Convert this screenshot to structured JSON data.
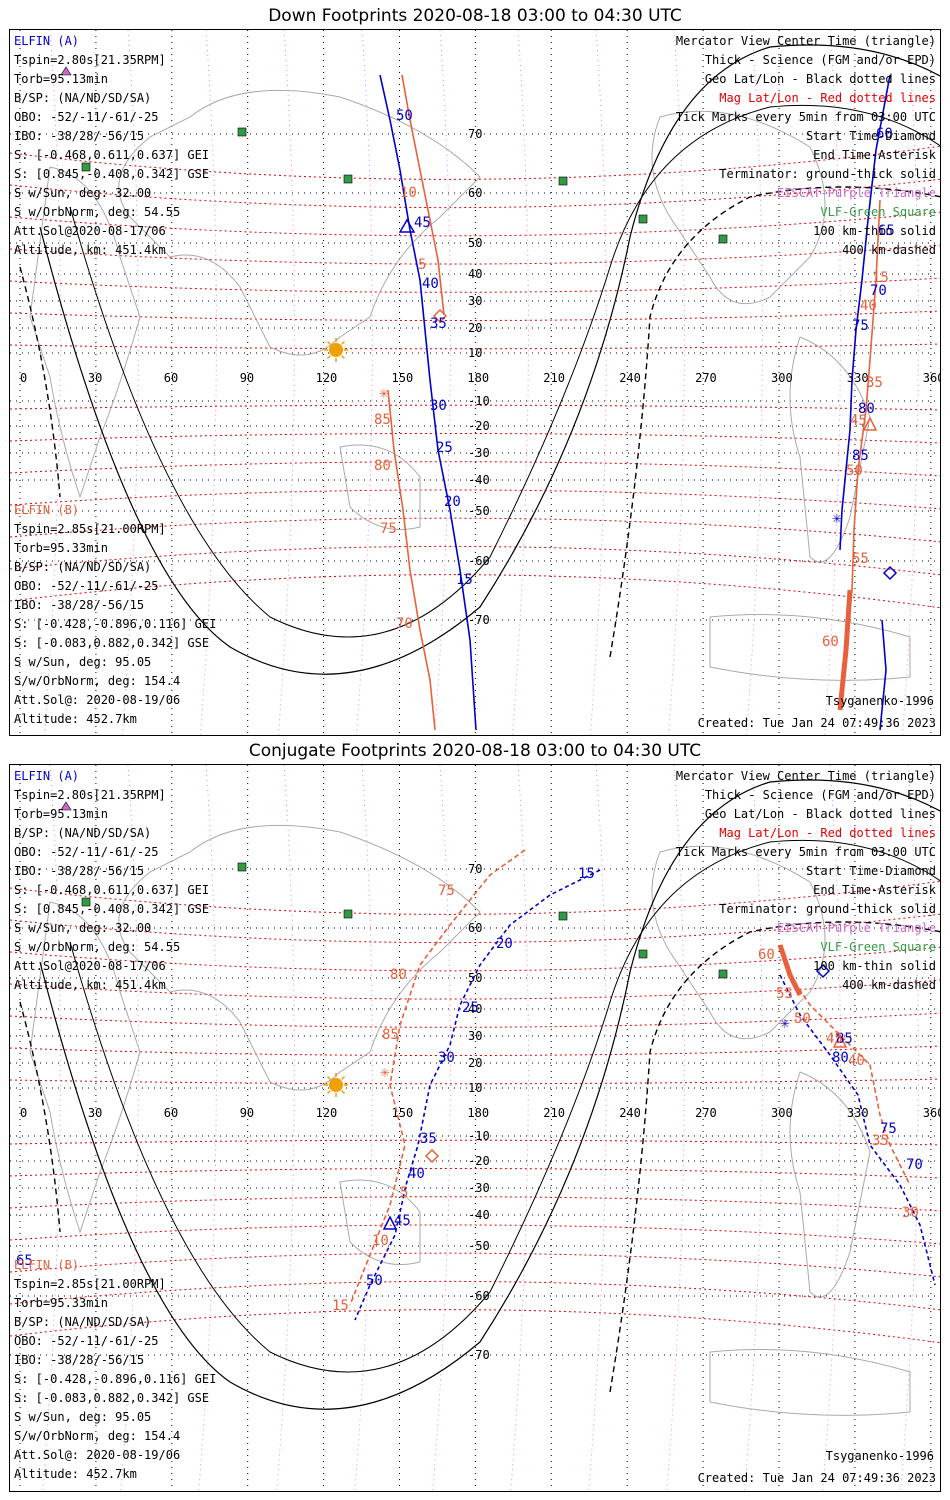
{
  "panels": [
    {
      "title": "Down Footprints 2020-08-18 03:00 to 04:30 UTC",
      "elfin_a": {
        "name": "ELFIN (A)",
        "lines": [
          "Tspin=2.80s[21.35RPM]",
          "Torb=95.13min",
          "B/SP: (NA/ND/SD/SA)",
          "OBO: -52/-11/-61/-25",
          "IBO: -38/28/-56/15",
          "S: [-0.468,0.611,0.637] GEI",
          "S: [0.845,-0.408,0.342] GSE",
          "S w/Sun, deg: 32.00",
          "S w/OrbNorm, deg: 54.55",
          "Att.Sol@2020-08-17/06",
          "Altitude, km: 451.4km"
        ]
      },
      "elfin_b": {
        "name": "ELFIN (B)",
        "lines": [
          "Tspin=2.85s[21.00RPM]",
          "Torb=95.33min",
          "B/SP: (NA/ND/SD/SA)",
          "OBO: -52/-11/-61/-25",
          "IBO: -38/28/-56/15",
          "S: [-0.428,-0.896,0.116] GEI",
          "S: [-0.083,0.882,0.342] GSE",
          "S w/Sun, deg: 95.05",
          "S/w/OrbNorm, deg: 154.4",
          "Att.Sol@: 2020-08-19/06",
          "Altitude: 452.7km"
        ]
      },
      "model": "Tsyganenko-1996",
      "created": "Created: Tue Jan 24 07:49:36 2023"
    },
    {
      "title": "Conjugate Footprints 2020-08-18 03:00 to 04:30 UTC",
      "elfin_a": {
        "name": "ELFIN (A)",
        "lines": [
          "Tspin=2.80s[21.35RPM]",
          "Torb=95.13min",
          "B/SP: (NA/ND/SD/SA)",
          "OBO: -52/-11/-61/-25",
          "IBO: -38/28/-56/15",
          "S: [-0.468,0.611,0.637] GEI",
          "S: [0.845,-0.408,0.342] GSE",
          "S w/Sun, deg: 32.00",
          "S w/OrbNorm, deg: 54.55",
          "Att.Sol@2020-08-17/06",
          "Altitude, km: 451.4km"
        ]
      },
      "elfin_b": {
        "name": "ELFIN (B)",
        "lines": [
          "Tspin=2.85s[21.00RPM]",
          "Torb=95.33min",
          "B/SP: (NA/ND/SD/SA)",
          "OBO: -52/-11/-61/-25",
          "IBO: -38/28/-56/15",
          "S: [-0.428,-0.896,0.116] GEI",
          "S: [-0.083,0.882,0.342] GSE",
          "S w/Sun, deg: 95.05",
          "S/w/OrbNorm, deg: 154.4",
          "Att.Sol@: 2020-08-19/06",
          "Altitude: 452.7km"
        ]
      },
      "model": "Tsyganenko-1996",
      "created": "Created: Tue Jan 24 07:49:36 2023"
    }
  ],
  "legend": [
    {
      "text": "Mercator View Center Time (triangle)",
      "color": "#000000"
    },
    {
      "text": "Thick - Science (FGM and/or EPD)",
      "color": "#000000"
    },
    {
      "text": "Geo Lat/Lon - Black dotted lines",
      "color": "#000000"
    },
    {
      "text": "Mag Lat/Lon - Red dotted lines",
      "color": "#e00000"
    },
    {
      "text": "Tick Marks every 5min from 03:00 UTC",
      "color": "#000000"
    },
    {
      "text": "Start Time-Diamond",
      "color": "#000000"
    },
    {
      "text": "End Time-Asterisk",
      "color": "#000000"
    },
    {
      "text": "Terminator: ground-thick solid",
      "color": "#000000"
    },
    {
      "text": "EISCAT-Purple Triangle",
      "color": "#cc66cc"
    },
    {
      "text": "VLF-Green Square",
      "color": "#339944"
    },
    {
      "text": "100 km-thin solid",
      "color": "#000000"
    },
    {
      "text": "400 km-dashed",
      "color": "#000000"
    }
  ],
  "axes": {
    "lon_labels": [
      "0",
      "30",
      "60",
      "90",
      "120",
      "150",
      "180",
      "210",
      "240",
      "270",
      "300",
      "330",
      "360"
    ],
    "lat_labels": [
      "70",
      "60",
      "50",
      "40",
      "30",
      "20",
      "10",
      "-10",
      "-20",
      "-30",
      "-40",
      "-50",
      "-60",
      "-70"
    ]
  },
  "tracks": {
    "p0": {
      "a_ticks": [
        "50",
        "45",
        "40",
        "35",
        "30",
        "25",
        "20",
        "15",
        "60",
        "65",
        "70",
        "75",
        "80",
        "85"
      ],
      "b_ticks": [
        "10",
        "5",
        "85",
        "80",
        "75",
        "70",
        "15",
        "60",
        "55",
        "50",
        "45",
        "40",
        "35"
      ]
    },
    "p1": {
      "a_ticks": [
        "15",
        "20",
        "25",
        "30",
        "35",
        "40",
        "45",
        "50",
        "65",
        "80",
        "85",
        "75",
        "70"
      ],
      "b_ticks": [
        "75",
        "80",
        "85",
        "5",
        "10",
        "15",
        "60",
        "55",
        "50",
        "45",
        "40",
        "35",
        "30"
      ]
    }
  },
  "colors": {
    "a": "#0000cc",
    "b": "#e8603c",
    "mag": "#e00000",
    "geo": "#000000",
    "eiscat": "#cc66cc",
    "vlf": "#339944",
    "sun": "#f0a000"
  }
}
